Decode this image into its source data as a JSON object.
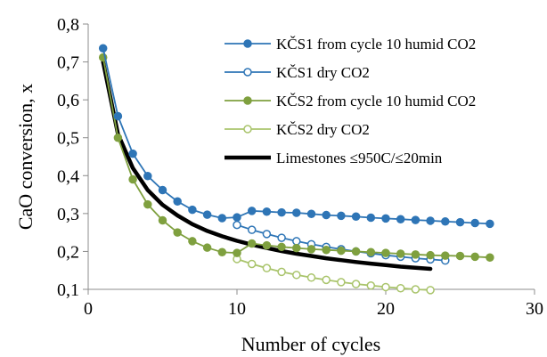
{
  "chart_data": {
    "type": "line",
    "title": "",
    "xlabel": "Number of cycles",
    "ylabel": "CaO conversion, x",
    "xlim": [
      0,
      30
    ],
    "ylim": [
      0.1,
      0.8
    ],
    "x_ticks": [
      0,
      10,
      20,
      30
    ],
    "x_tick_labels": [
      "0",
      "10",
      "20",
      "30"
    ],
    "y_ticks": [
      0.1,
      0.2,
      0.3,
      0.4,
      0.5,
      0.6,
      0.7,
      0.8
    ],
    "y_tick_labels": [
      "0,1",
      "0,2",
      "0,3",
      "0,4",
      "0,5",
      "0,6",
      "0,7",
      "0,8"
    ],
    "grid": false,
    "legend_position": "top-right",
    "series": [
      {
        "name": "KČS1 from cycle 10 humid CO2",
        "color": "#2e75b6",
        "marker": "filled-circle",
        "x": [
          1,
          2,
          3,
          4,
          5,
          6,
          7,
          8,
          9,
          10,
          11,
          12,
          13,
          14,
          15,
          16,
          17,
          18,
          19,
          20,
          21,
          22,
          23,
          24,
          25,
          26,
          27
        ],
        "y": [
          0.736,
          0.557,
          0.458,
          0.399,
          0.362,
          0.332,
          0.31,
          0.297,
          0.288,
          0.29,
          0.307,
          0.305,
          0.303,
          0.302,
          0.299,
          0.296,
          0.294,
          0.292,
          0.289,
          0.287,
          0.285,
          0.283,
          0.281,
          0.279,
          0.277,
          0.275,
          0.273
        ]
      },
      {
        "name": "KČS1 dry CO2",
        "color": "#2e75b6",
        "marker": "open-circle",
        "x": [
          10,
          11,
          12,
          13,
          14,
          15,
          16,
          17,
          18,
          19,
          20,
          21,
          22,
          23,
          24
        ],
        "y": [
          0.27,
          0.257,
          0.246,
          0.236,
          0.227,
          0.219,
          0.212,
          0.206,
          0.2,
          0.195,
          0.19,
          0.186,
          0.182,
          0.179,
          0.176
        ]
      },
      {
        "name": "KČS2 from cycle 10 humid CO2",
        "color": "#7fa03f",
        "marker": "filled-circle",
        "x": [
          1,
          2,
          3,
          4,
          5,
          6,
          7,
          8,
          9,
          10,
          11,
          12,
          13,
          14,
          15,
          16,
          17,
          18,
          19,
          20,
          21,
          22,
          23,
          24,
          25,
          26,
          27
        ],
        "y": [
          0.712,
          0.5,
          0.39,
          0.324,
          0.282,
          0.25,
          0.227,
          0.21,
          0.198,
          0.196,
          0.221,
          0.216,
          0.212,
          0.209,
          0.206,
          0.204,
          0.202,
          0.2,
          0.198,
          0.196,
          0.194,
          0.192,
          0.19,
          0.189,
          0.188,
          0.186,
          0.184
        ]
      },
      {
        "name": "KČS2 dry CO2",
        "color": "#a9c46b",
        "marker": "open-circle",
        "x": [
          10,
          11,
          12,
          13,
          14,
          15,
          16,
          17,
          18,
          19,
          20,
          21,
          22,
          23
        ],
        "y": [
          0.18,
          0.167,
          0.156,
          0.146,
          0.138,
          0.131,
          0.125,
          0.119,
          0.114,
          0.11,
          0.106,
          0.103,
          0.1,
          0.098
        ]
      },
      {
        "name": "Limestones ≤950C/≤20min",
        "color": "#000000",
        "marker": "none",
        "x": [
          1,
          2,
          3,
          4,
          5,
          6,
          7,
          8,
          9,
          10,
          11,
          12,
          13,
          14,
          15,
          16,
          17,
          18,
          19,
          20,
          21,
          22,
          23
        ],
        "y": [
          0.7,
          0.51,
          0.42,
          0.362,
          0.323,
          0.295,
          0.272,
          0.254,
          0.24,
          0.228,
          0.218,
          0.209,
          0.201,
          0.194,
          0.188,
          0.182,
          0.177,
          0.172,
          0.168,
          0.164,
          0.16,
          0.157,
          0.154
        ]
      }
    ]
  }
}
